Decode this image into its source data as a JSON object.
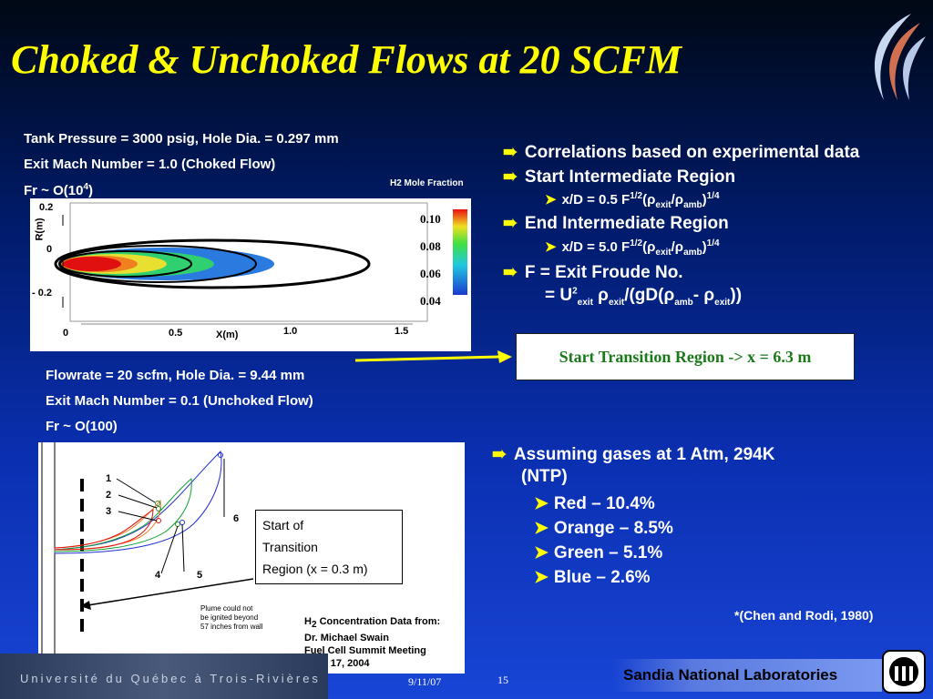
{
  "title": "Choked & Unchoked Flows at 20 SCFM",
  "choked": {
    "line1": "Tank Pressure = 3000 psig, Hole Dia. = 0.297 mm",
    "line2": "Exit Mach Number = 1.0 (Choked Flow)",
    "line3_pre": "Fr ~ O(10",
    "line3_sup": "4",
    "line3_post": ")"
  },
  "plot1": {
    "colorbar_title": "H2 Mole Fraction",
    "colorbar_ticks": [
      "0.10",
      "0.08",
      "0.06",
      "0.04"
    ],
    "ylabel": "R(m)",
    "yticks": [
      "0.2",
      "0",
      "- 0.2"
    ],
    "xlabel": "X(m)",
    "xticks": [
      "0",
      "0.5",
      "1.0",
      "1.5"
    ]
  },
  "unchoked": {
    "line1": "Flowrate = 20 scfm, Hole Dia. = 9.44 mm",
    "line2": "Exit Mach Number = 0.1 (Unchoked Flow)",
    "line3": "Fr ~ O(100)"
  },
  "plot2": {
    "labels": [
      "1",
      "2",
      "3",
      "4",
      "5",
      "6"
    ],
    "box_lines": [
      "Start of",
      "Transition",
      "Region (x = 0.3 m)"
    ],
    "plume_note": [
      "Plume could not",
      "be ignited beyond",
      "57 inches from wall"
    ],
    "source_pre": "H",
    "source_sub": "2",
    "source_post": " Concentration Data from:",
    "source_lines": [
      "Dr. Michael Swain",
      "Fuel Cell Summit Meeting",
      "June 17, 2004"
    ]
  },
  "right": {
    "b1": "Correlations based on experimental data",
    "b2": "Start Intermediate Region",
    "b2_sub": "x/D = 0.5 F",
    "b3": "End Intermediate Region",
    "b3_sub": "x/D = 5.0 F",
    "b4": "F = Exit Froude No.",
    "b4_eq": "= U",
    "callout": "Start Transition Region -> x = 6.3 m",
    "assume_1": "Assuming gases at 1 Atm, 294K",
    "assume_2": "(NTP)",
    "items": [
      "Red – 10.4%",
      "Orange – 8.5%",
      "Green – 5.1%",
      "Blue – 2.6%"
    ],
    "ref": "*(Chen and Rodi, 1980)"
  },
  "footer": {
    "univ": "Université du Québec à Trois-Rivières",
    "date": "9/11/07",
    "page": "15",
    "lab": "Sandia National Laboratories"
  },
  "icons": [
    "arrow-bullet-icon",
    "triangle-bullet-icon",
    "swirl-logo-icon",
    "sandia-logo-icon"
  ],
  "colors": {
    "title": "#ffff00",
    "callout_text": "#1a7a1a",
    "arrow": "#ffff00"
  }
}
